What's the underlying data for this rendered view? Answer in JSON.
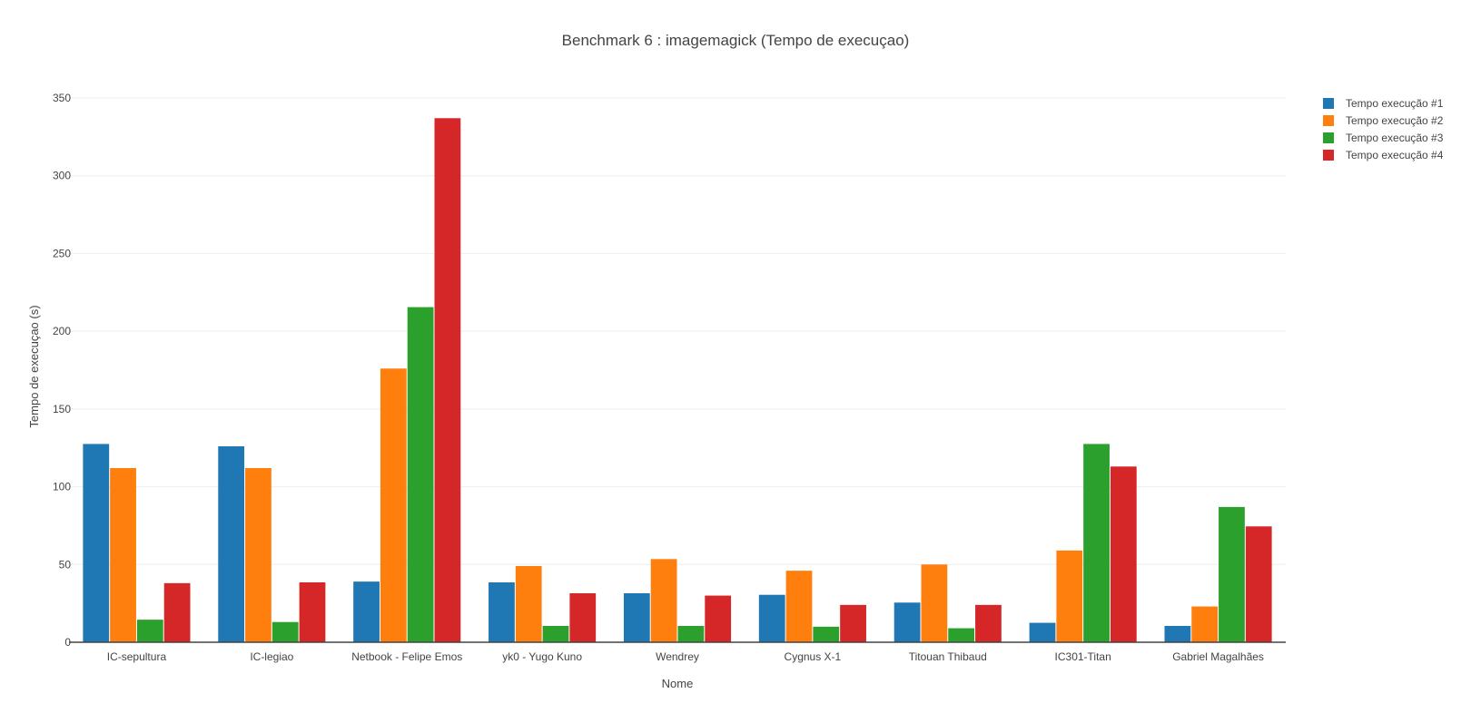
{
  "chart_data": {
    "type": "bar",
    "title": "Benchmark 6 : imagemagick (Tempo de execuçao)",
    "xlabel": "Nome",
    "ylabel": "Tempo de execuçao (s)",
    "ylim": [
      0,
      350
    ],
    "yticks": [
      "0",
      "50",
      "100",
      "150",
      "200",
      "250",
      "300",
      "350"
    ],
    "grid": true,
    "legend_position": "top-right",
    "categories": [
      "IC-sepultura",
      "IC-legiao",
      "Netbook - Felipe Emos",
      "yk0 - Yugo Kuno",
      "Wendrey",
      "Cygnus X-1",
      "Titouan Thibaud",
      "IC301-Titan",
      "Gabriel Magalhães"
    ],
    "series": [
      {
        "name": "Tempo execução  #1",
        "color": "#1f77b4",
        "values": [
          127.5,
          126,
          39,
          38.5,
          31.5,
          30.5,
          25.5,
          12.5,
          10.5
        ]
      },
      {
        "name": "Tempo execução  #2",
        "color": "#ff7f0e",
        "values": [
          112,
          112,
          176,
          49,
          53.5,
          46,
          50,
          59,
          23
        ]
      },
      {
        "name": "Tempo execução  #3",
        "color": "#2ca02c",
        "values": [
          14.5,
          13,
          215.5,
          10.5,
          10.5,
          10,
          9,
          127.5,
          87
        ]
      },
      {
        "name": "Tempo execução  #4",
        "color": "#d62728",
        "values": [
          38,
          38.5,
          337,
          31.5,
          30,
          24,
          24,
          113,
          74.5
        ]
      }
    ]
  }
}
